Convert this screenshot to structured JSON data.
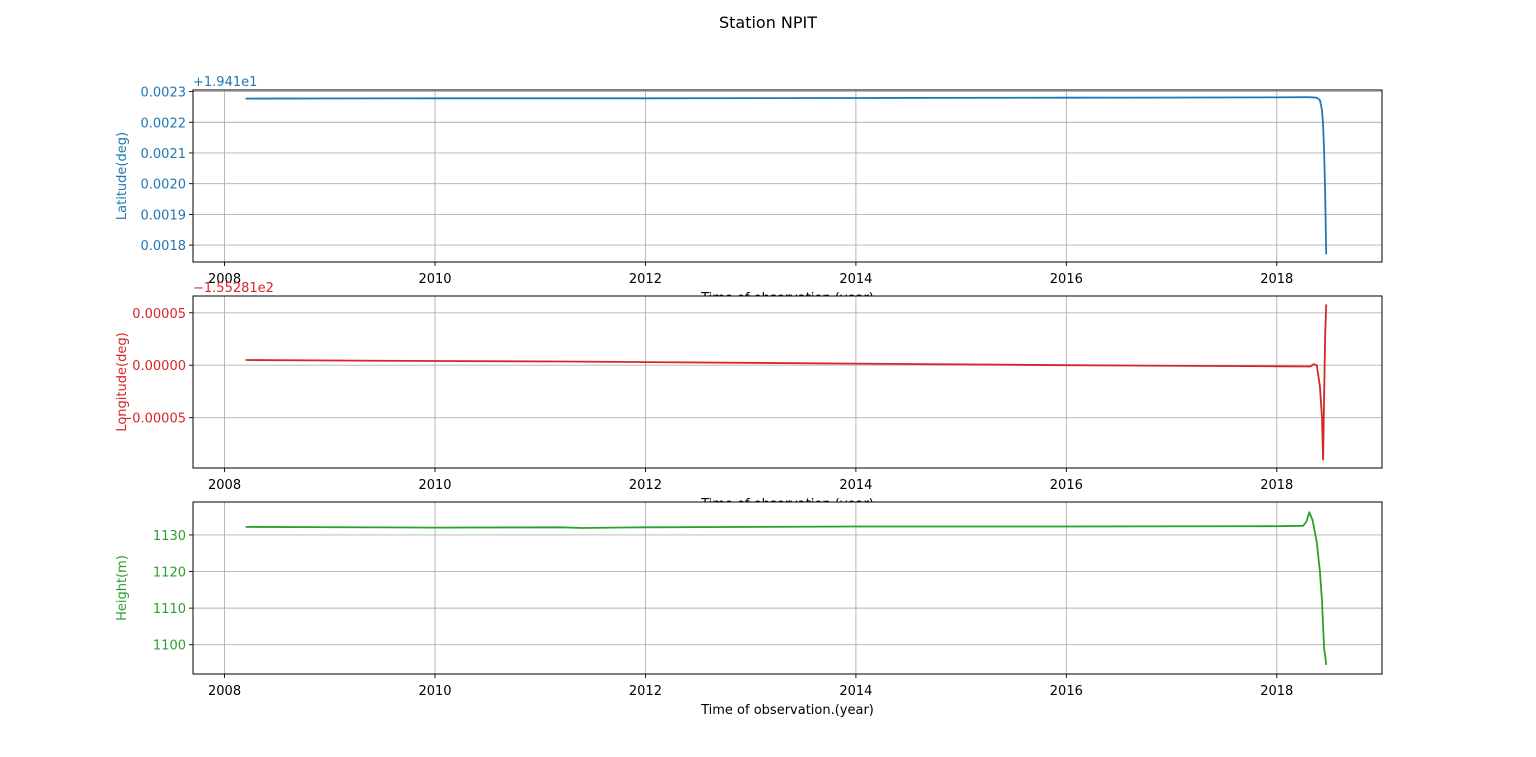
{
  "title": "Station NPIT",
  "colors": {
    "latitude": "#1f77b4",
    "longitude": "#d62728",
    "height": "#2ca02c",
    "grid": "#b0b0b0",
    "frame": "#000000"
  },
  "chart_data": [
    {
      "type": "line",
      "name": "latitude",
      "xlabel": "Time of observation.(year)",
      "ylabel": "Latitude(deg)",
      "offset_label": "+1.941e1",
      "grid": true,
      "xlim": [
        2007.7,
        2019.0
      ],
      "ylim": [
        0.001745,
        0.002305
      ],
      "xticks": [
        "2008",
        "2010",
        "2012",
        "2014",
        "2016",
        "2018"
      ],
      "yticks": [
        "0.0018",
        "0.0019",
        "0.0020",
        "0.0021",
        "0.0022",
        "0.0023"
      ],
      "x": [
        2008.2,
        2010.0,
        2012.0,
        2014.0,
        2016.0,
        2018.0,
        2018.3,
        2018.38,
        2018.41,
        2018.43,
        2018.44,
        2018.45,
        2018.46,
        2018.47
      ],
      "y": [
        0.002277,
        0.002278,
        0.002278,
        0.002279,
        0.00228,
        0.002281,
        0.002282,
        0.00228,
        0.002272,
        0.00224,
        0.00219,
        0.00211,
        0.00196,
        0.00177
      ]
    },
    {
      "type": "line",
      "name": "longitude",
      "xlabel": "Time of observation.(year)",
      "ylabel": "Longitude(deg)",
      "offset_label": "−1.55281e2",
      "grid": true,
      "xlim": [
        2007.7,
        2019.0
      ],
      "ylim": [
        -9.8e-05,
        6.6e-05
      ],
      "xticks": [
        "2008",
        "2010",
        "2012",
        "2014",
        "2016",
        "2018"
      ],
      "yticks": [
        "−0.00005",
        "0.00000",
        "0.00005"
      ],
      "x": [
        2008.2,
        2010.0,
        2011.2,
        2012.0,
        2014.0,
        2016.0,
        2018.0,
        2018.32,
        2018.35,
        2018.38,
        2018.41,
        2018.43,
        2018.44,
        2018.45,
        2018.46,
        2018.47
      ],
      "y": [
        5e-06,
        4e-06,
        3.5e-06,
        3e-06,
        1.5e-06,
        0.0,
        -1e-06,
        -1.2e-06,
        1e-06,
        0.0,
        -2e-05,
        -5e-05,
        -9e-05,
        -3e-05,
        3e-05,
        5.8e-05
      ]
    },
    {
      "type": "line",
      "name": "height",
      "xlabel": "Time of observation.(year)",
      "ylabel": "Height(m)",
      "grid": true,
      "xlim": [
        2007.7,
        2019.0
      ],
      "ylim": [
        1092,
        1139
      ],
      "xticks": [
        "2008",
        "2010",
        "2012",
        "2014",
        "2016",
        "2018"
      ],
      "yticks": [
        "1100",
        "1110",
        "1120",
        "1130"
      ],
      "x": [
        2008.2,
        2010.0,
        2011.2,
        2011.4,
        2012.0,
        2014.0,
        2016.0,
        2018.0,
        2018.25,
        2018.28,
        2018.31,
        2018.34,
        2018.38,
        2018.41,
        2018.43,
        2018.44,
        2018.45,
        2018.46,
        2018.47
      ],
      "y": [
        1132.2,
        1132.0,
        1132.1,
        1131.9,
        1132.1,
        1132.3,
        1132.3,
        1132.4,
        1132.5,
        1133.5,
        1136.2,
        1134.0,
        1128.0,
        1120.0,
        1112.0,
        1105.0,
        1099.0,
        1097.0,
        1094.5
      ]
    }
  ]
}
